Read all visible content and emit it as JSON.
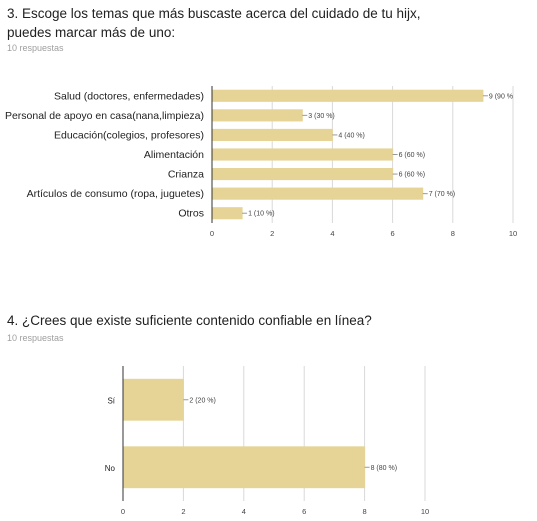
{
  "q3": {
    "title_line1": "3. Escoge los temas que más buscaste acerca del cuidado de tu hijx,",
    "title_line2": "puedes marcar más de uno:",
    "responses": "10 respuestas"
  },
  "q4": {
    "title": "4. ¿Crees que existe suficiente contenido confiable en línea?",
    "responses": "10 respuestas"
  },
  "chart_data": [
    {
      "type": "bar",
      "orientation": "horizontal",
      "categories": [
        "Salud (doctores, enfermedades)",
        "Personal de apoyo en casa(nana,limpieza)",
        "Educación(colegios, profesores)",
        "Alimentación",
        "Crianza",
        "Artículos de consumo (ropa, juguetes)",
        "Otros"
      ],
      "values": [
        9,
        3,
        4,
        6,
        6,
        7,
        1
      ],
      "data_labels": [
        "9 (90 %",
        "3 (30 %)",
        "4 (40 %)",
        "6 (60 %)",
        "6 (60 %)",
        "7 (70 %)",
        "1 (10 %)"
      ],
      "xlim": [
        0,
        10
      ],
      "xticks": [
        "0",
        "2",
        "4",
        "6",
        "8",
        "10"
      ],
      "grid": true,
      "bar_color": "#e6d496"
    },
    {
      "type": "bar",
      "orientation": "horizontal",
      "categories": [
        "Sí",
        "No"
      ],
      "values": [
        2,
        8
      ],
      "data_labels": [
        "2 (20 %)",
        "8 (80 %)"
      ],
      "xlim": [
        0,
        10
      ],
      "xticks": [
        "0",
        "2",
        "4",
        "6",
        "8",
        "10"
      ],
      "grid": true,
      "bar_color": "#e6d496"
    }
  ]
}
